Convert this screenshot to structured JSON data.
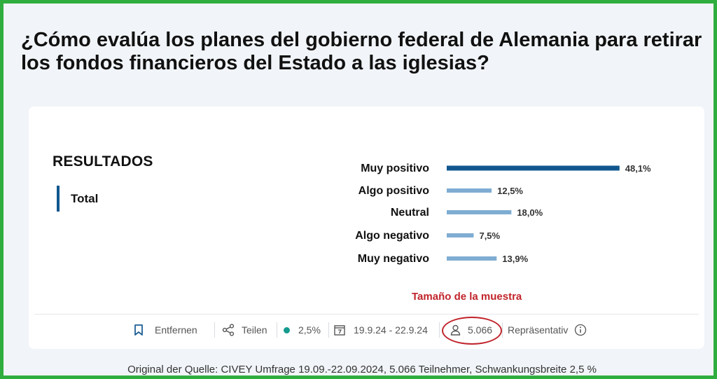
{
  "headline": "¿Cómo evalúa los planes del gobierno federal de Alemania para retirar los fondos financieros del Estado a las iglesias?",
  "results_title": "RESULTADOS",
  "total_label": "Total",
  "chart_data": {
    "type": "bar",
    "orientation": "horizontal",
    "categories": [
      "Muy positivo",
      "Algo positivo",
      "Neutral",
      "Algo negativo",
      "Muy negativo"
    ],
    "values": [
      48.1,
      12.5,
      18.0,
      7.5,
      13.9
    ],
    "value_labels": [
      "48,1%",
      "12,5%",
      "18,0%",
      "7,5%",
      "13,9%"
    ],
    "unit": "%",
    "colors": [
      "#10578f",
      "#7fadd2",
      "#7fadd2",
      "#7fadd2",
      "#7fadd2"
    ]
  },
  "sample_note": "Tamaño de la muestra",
  "toolbar": {
    "remove": "Entfernen",
    "share": "Teilen",
    "margin": "2,5%",
    "dates": "19.9.24 - 22.9.24",
    "sample": "5.066",
    "representative": "Repräsentativ"
  },
  "source": "Original der Quelle: CIVEY Umfrage 19.09.-22.09.2024, 5.066 Teilnehmer, Schwankungsbreite 2,5 %",
  "colors": {
    "frame": "#2fae3f",
    "accent": "#10578f",
    "bar_light": "#7fadd2",
    "highlight": "#c0242b",
    "dot": "#159a8e"
  }
}
